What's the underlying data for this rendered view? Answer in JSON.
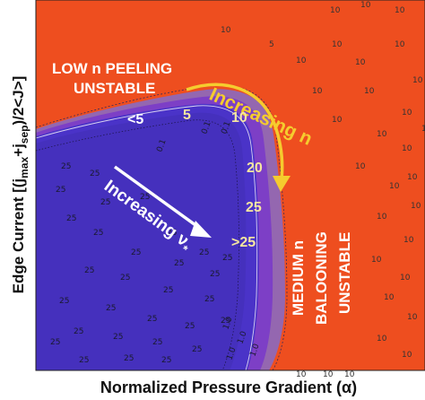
{
  "chart_data": {
    "type": "heatmap",
    "title": "",
    "xlabel": "Normalized Pressure Gradient (α)",
    "ylabel": "Edge Current [(j",
    "ylabel_sub1": "max",
    "ylabel_mid": "+j",
    "ylabel_sub2": "sep",
    "ylabel_tail": ")/2<J>]",
    "colors": {
      "high": "#ee4e1f",
      "outer_contour": "#8a6ac0",
      "band": "#7d3fc6",
      "low": "#4a33c8",
      "inner_dark": "#3b2aa8",
      "arrow_n": "#f5cc2e",
      "arrow_nu": "#ffffff"
    },
    "region_labels": {
      "peeling_line1": "LOW n PEELING",
      "peeling_line2": "UNSTABLE",
      "ballooning_line1": "MEDIUM n",
      "ballooning_line2": "BALOONING",
      "ballooning_line3": "UNSTABLE"
    },
    "arrows": {
      "increasing_n": "Increasing n",
      "increasing_nu": "Increasing ν",
      "nu_subscript": "*"
    },
    "n_labels": [
      "<5",
      "5",
      "10",
      "20",
      "25",
      ">25"
    ],
    "contour_labels": {
      "high_region": [
        "10",
        "10",
        "10",
        "5",
        "10",
        "10",
        "10",
        "10",
        "10",
        "10",
        "10",
        "10",
        "10",
        "10",
        "10",
        "10",
        "10",
        "10",
        "10",
        "10",
        "10",
        "10",
        "10",
        "10",
        "10",
        "10",
        "10",
        "10",
        "10",
        "10",
        "10",
        "10"
      ],
      "low_region": [
        "25",
        "25",
        "25",
        "25",
        "25",
        "25",
        "25",
        "25",
        "25",
        "25",
        "25",
        "25",
        "25",
        "25",
        "25",
        "25",
        "25",
        "25",
        "25",
        "25",
        "25",
        "25",
        "25",
        "25",
        "25",
        "25",
        "25",
        "25",
        "25",
        "25"
      ],
      "band_region": [
        "0.1",
        "0.1",
        "0.1",
        "1.0",
        "1.0",
        "1.0",
        "1.0"
      ]
    }
  }
}
